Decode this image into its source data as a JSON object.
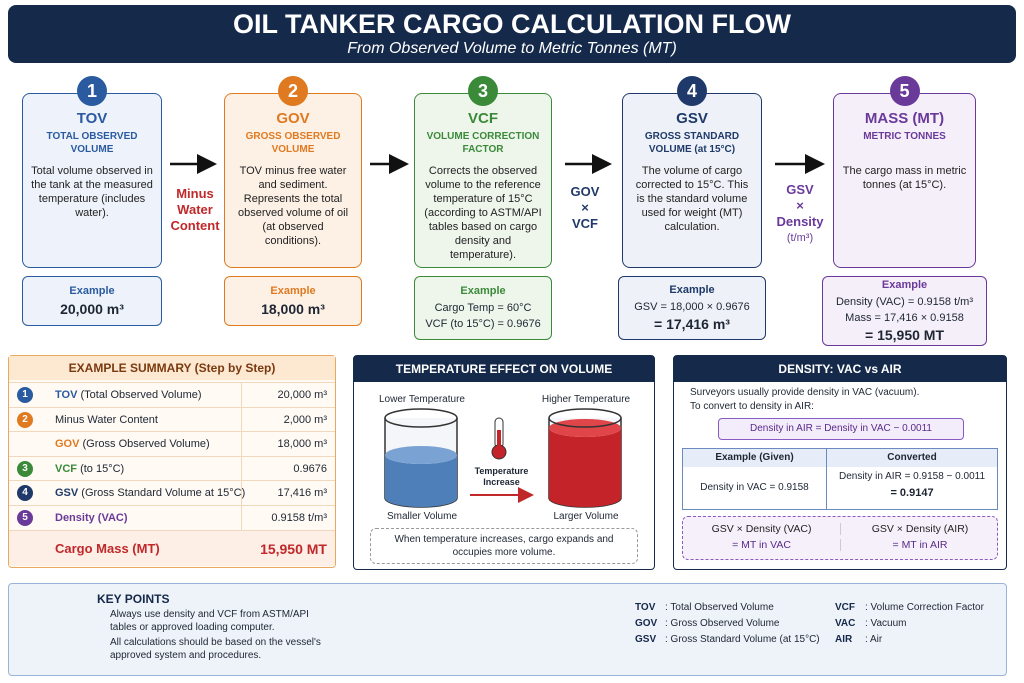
{
  "header": {
    "title": "OIL TANKER CARGO CALCULATION FLOW",
    "subtitle": "From Observed Volume to Metric Tonnes (MT)"
  },
  "steps": [
    {
      "number": "1",
      "abbr": "TOV",
      "name": "TOTAL OBSERVED VOLUME",
      "description": "Total volume observed in the tank at the measured temperature (includes water).",
      "example_label": "Example",
      "example": [
        "20,000 m³"
      ]
    },
    {
      "number": "2",
      "abbr": "GOV",
      "name": "GROSS OBSERVED VOLUME",
      "description": "TOV minus free water and sediment. Represents the total observed volume of oil (at observed conditions).",
      "example_label": "Example",
      "example": [
        "18,000 m³"
      ]
    },
    {
      "number": "3",
      "abbr": "VCF",
      "name": "VOLUME CORRECTION FACTOR",
      "description": "Corrects the observed volume to the reference temperature of 15°C (according to ASTM/API tables based on cargo density and temperature).",
      "example_label": "Example",
      "example": [
        "Cargo Temp = 60°C",
        "VCF (to 15°C) = 0.9676"
      ]
    },
    {
      "number": "4",
      "abbr": "GSV",
      "name": "GROSS STANDARD VOLUME (at 15°C)",
      "description": "The volume of cargo corrected to 15°C. This is the standard volume used for weight (MT) calculation.",
      "example_label": "Example",
      "example": [
        "GSV = 18,000 × 0.9676",
        "= 17,416 m³"
      ]
    },
    {
      "number": "5",
      "abbr": "MASS (MT)",
      "name": "METRIC TONNES",
      "description": "The cargo mass in metric tonnes (at 15°C).",
      "example_label": "Example",
      "example": [
        "Density (VAC) = 0.9158 t/m³",
        "Mass = 17,416 × 0.9158",
        "= 15,950 MT"
      ]
    }
  ],
  "connectors": [
    [
      "Minus",
      "Water",
      "Content"
    ],
    [
      "GOV",
      "×",
      "VCF"
    ],
    [
      "GSV",
      "×",
      "Density",
      "(t/m³)"
    ]
  ],
  "summary": {
    "title": "EXAMPLE SUMMARY (Step by Step)",
    "rows": [
      {
        "number": "1",
        "abbr": "TOV",
        "label": "(Total Observed Volume)",
        "value": "20,000 m³"
      },
      {
        "number": "2",
        "label": "Minus Water Content",
        "value": "2,000 m³"
      },
      {
        "abbr": "GOV",
        "label": "(Gross Observed Volume)",
        "value": "18,000 m³"
      },
      {
        "number": "3",
        "abbr": "VCF",
        "label": "(to 15°C)",
        "value": "0.9676"
      },
      {
        "number": "4",
        "abbr": "GSV",
        "label": "(Gross Standard Volume at 15°C)",
        "value": "17,416 m³"
      },
      {
        "number": "5",
        "abbr": "Density (VAC)",
        "value": "0.9158 t/m³"
      }
    ],
    "total": {
      "label": "Cargo Mass (MT)",
      "value": "15,950 MT"
    }
  },
  "temperature": {
    "title": "TEMPERATURE EFFECT ON VOLUME",
    "lower": "Lower Temperature",
    "higher": "Higher Temperature",
    "thermometer": "Temperature Increase",
    "smaller": "Smaller Volume",
    "larger": "Larger Volume",
    "note": "When temperature increases, cargo expands and occupies more volume."
  },
  "density": {
    "title": "DENSITY: VAC vs AIR",
    "intro": [
      "Surveyors usually provide density in VAC (vacuum).",
      "To convert to density in AIR:"
    ],
    "formula": "Density in AIR = Density in VAC − 0.0011",
    "headers": [
      "Example (Given)",
      "Converted"
    ],
    "given": "Density in VAC = 0.9158",
    "converted": [
      "Density in AIR = 0.9158 − 0.0011",
      "= 0.9147"
    ],
    "results": [
      [
        "GSV × Density (VAC)",
        "= MT in VAC"
      ],
      [
        "GSV × Density (AIR)",
        "= MT in AIR"
      ]
    ]
  },
  "key_points": {
    "title": "KEY POINTS",
    "bullets": [
      "Always use density and VCF from ASTM/API tables or approved loading computer.",
      "All calculations should be based on the vessel's approved system and procedures."
    ],
    "abbreviations": [
      {
        "abbr": "TOV",
        "meaning": ": Total Observed Volume"
      },
      {
        "abbr": "GOV",
        "meaning": ": Gross Observed Volume"
      },
      {
        "abbr": "GSV",
        "meaning": ": Gross Standard Volume (at 15°C)"
      },
      {
        "abbr": "VCF",
        "meaning": ": Volume Correction Factor"
      },
      {
        "abbr": "VAC",
        "meaning": ": Vacuum"
      },
      {
        "abbr": "AIR",
        "meaning": ": Air"
      }
    ]
  }
}
